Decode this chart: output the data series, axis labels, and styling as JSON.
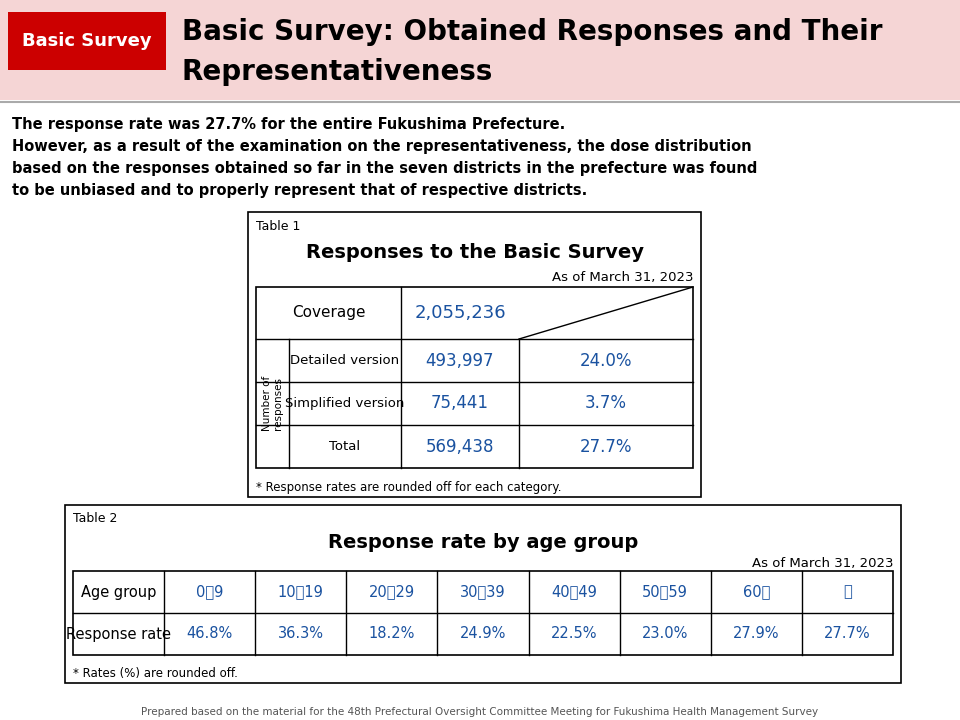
{
  "header_pink_bg": "#f5d5d5",
  "header_red_bg": "#cc0000",
  "header_red_text": "Basic Survey",
  "header_title_line1": "Basic Survey: Obtained Responses and Their",
  "header_title_line2": "Representativeness",
  "body_lines": [
    "The response rate was 27.7% for the entire Fukushima Prefecture.",
    "However, as a result of the examination on the representativeness, the dose distribution",
    "based on the responses obtained so far in the seven districts in the prefecture was found",
    "to be unbiased and to properly represent that of respective districts."
  ],
  "table1_label": "Table 1",
  "table1_title": "Responses to the Basic Survey",
  "table1_date": "As of March 31, 2023",
  "table1_coverage_label": "Coverage",
  "table1_coverage_value": "2,055,236",
  "table1_rowgroup_label": "Number of\nresponses",
  "table1_rows": [
    {
      "label": "Detailed version",
      "value": "493,997",
      "pct": "24.0%"
    },
    {
      "label": "Simplified version",
      "value": "75,441",
      "pct": "3.7%"
    },
    {
      "label": "Total",
      "value": "569,438",
      "pct": "27.7%"
    }
  ],
  "table1_note": "* Response rates are rounded off for each category.",
  "table2_label": "Table 2",
  "table2_title": "Response rate by age group",
  "table2_date": "As of March 31, 2023",
  "table2_age_groups": [
    "Age group",
    "0～9",
    "10～19",
    "20～29",
    "30～39",
    "40～49",
    "50～59",
    "60～",
    "計"
  ],
  "table2_rates": [
    "Response rate",
    "46.8%",
    "36.3%",
    "18.2%",
    "24.9%",
    "22.5%",
    "23.0%",
    "27.9%",
    "27.7%"
  ],
  "table2_note": "* Rates (%) are rounded off.",
  "footer_text": "Prepared based on the material for the 48th Prefectural Oversight Committee Meeting for Fukushima Health Management Survey",
  "value_color": "#1a52a0",
  "bg_color": "#ffffff",
  "border_color": "#000000",
  "separator_color": "#aaaaaa"
}
